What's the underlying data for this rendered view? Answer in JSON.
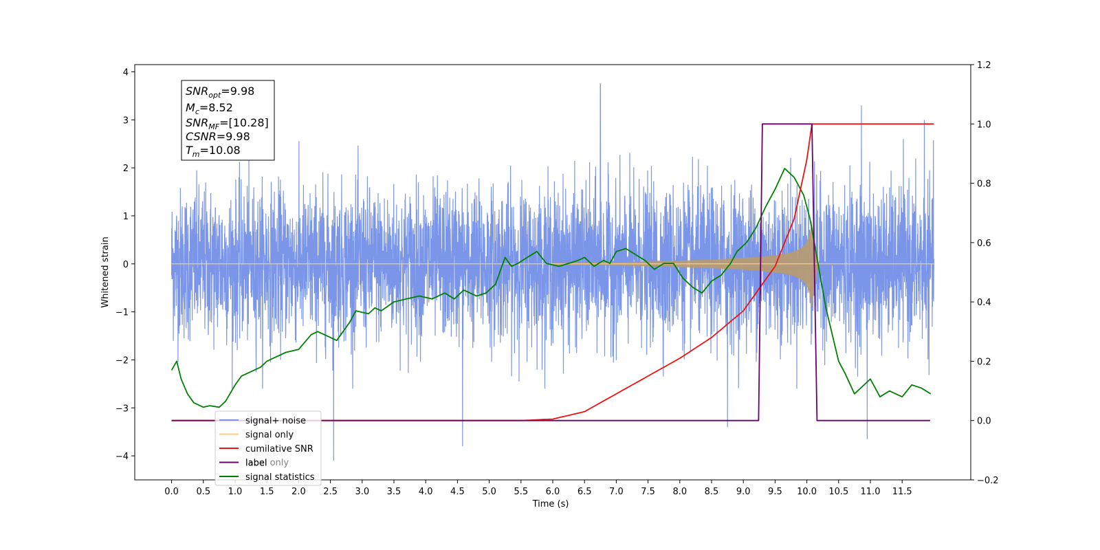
{
  "chart_data": {
    "type": "line",
    "xlabel": "Time (s)",
    "ylabel": "Whitened strain",
    "xlim": [
      -0.58,
      12.58
    ],
    "ylim": [
      -4.5,
      4.15
    ],
    "y2lim": [
      -0.2,
      1.2
    ],
    "x_ticks": [
      "0.0",
      "0.5",
      "1.0",
      "1.5",
      "2.0",
      "2.5",
      "3.0",
      "3.5",
      "4.0",
      "4.5",
      "5.0",
      "5.5",
      "6.0",
      "6.5",
      "7.0",
      "7.5",
      "8.0",
      "8.5",
      "9.0",
      "9.5",
      "10.0",
      "10.5",
      "11.0",
      "11.5"
    ],
    "y_ticks": [
      "4",
      "3",
      "2",
      "1",
      "0",
      "−1",
      "−2",
      "−3",
      "−4"
    ],
    "y2_ticks": [
      "1.2",
      "1.0",
      "0.8",
      "0.6",
      "0.4",
      "0.2",
      "0.0",
      "−0.2"
    ],
    "info_box": {
      "snr_opt": {
        "sym": "SNR",
        "sub": "opt",
        "val": "=9.98"
      },
      "mc": {
        "sym": "M",
        "sub": "c",
        "val": "=8.52"
      },
      "snr_mf": {
        "sym": "SNR",
        "sub": "MF",
        "val": "=[10.28]"
      },
      "csnr": {
        "sym": "CSNR",
        "val": "=9.98"
      },
      "tm": {
        "sym": "T",
        "sub": "m",
        "val": "=10.08"
      }
    },
    "legend": {
      "placement": "lower-left",
      "entries": [
        {
          "label": "signal+ noise",
          "color": "#7b96e8"
        },
        {
          "label": "signal only",
          "color": "#ffcc80"
        },
        {
          "label": "cumilative SNR",
          "color": "#ee1111"
        },
        {
          "label": "label",
          "color": "#6a006a"
        },
        {
          "label": "signal statistics",
          "color": "#008000"
        }
      ],
      "hidden_behind_legend": "label only"
    },
    "series": [
      {
        "name": "signal+ noise",
        "axis": "left",
        "description_values": "noise-dominated whitened strain, roughly ±2.5 with peaks near 3.7 and -4.1",
        "x_range": [
          0.0,
          12.0
        ],
        "spikes": [
          [
            6.75,
            3.75
          ],
          [
            2.55,
            -4.1
          ],
          [
            4.58,
            -3.8
          ],
          [
            10.86,
            3.3
          ],
          [
            10.95,
            -3.65
          ],
          [
            11.85,
            3.0
          ],
          [
            8.75,
            -3.4
          ]
        ]
      },
      {
        "name": "signal only",
        "axis": "left",
        "chirp_start": 6.0,
        "merger_time": 10.08,
        "peak_amplitude": 0.85
      },
      {
        "name": "cumilative SNR",
        "axis": "right",
        "x": [
          0.0,
          5.5,
          6.0,
          6.5,
          7.0,
          7.5,
          8.0,
          8.5,
          9.0,
          9.5,
          9.8,
          10.0,
          10.08,
          12.0
        ],
        "y": [
          0.0,
          0.0,
          0.005,
          0.03,
          0.09,
          0.15,
          0.21,
          0.28,
          0.37,
          0.52,
          0.68,
          0.88,
          1.0,
          1.0
        ]
      },
      {
        "name": "label",
        "axis": "right",
        "x": [
          0.0,
          9.24,
          9.3,
          10.08,
          10.16,
          11.94
        ],
        "y": [
          0.0,
          0.0,
          1.0,
          1.0,
          0.0,
          0.0
        ]
      },
      {
        "name": "signal statistics",
        "axis": "right",
        "x": [
          0.0,
          0.08,
          0.15,
          0.25,
          0.35,
          0.5,
          0.6,
          0.75,
          0.85,
          1.0,
          1.1,
          1.2,
          1.4,
          1.5,
          1.6,
          1.8,
          2.0,
          2.2,
          2.3,
          2.4,
          2.6,
          2.8,
          2.9,
          3.1,
          3.2,
          3.3,
          3.5,
          3.7,
          3.9,
          4.1,
          4.3,
          4.45,
          4.6,
          4.8,
          4.95,
          5.1,
          5.25,
          5.35,
          5.45,
          5.6,
          5.75,
          5.9,
          6.1,
          6.25,
          6.4,
          6.5,
          6.65,
          6.8,
          6.9,
          7.0,
          7.15,
          7.3,
          7.45,
          7.6,
          7.75,
          7.9,
          8.05,
          8.2,
          8.35,
          8.5,
          8.65,
          8.8,
          8.9,
          9.05,
          9.2,
          9.35,
          9.5,
          9.65,
          9.8,
          9.95,
          10.05,
          10.15,
          10.3,
          10.5,
          10.6,
          10.75,
          10.9,
          11.0,
          11.15,
          11.3,
          11.5,
          11.65,
          11.8,
          11.95
        ],
        "y": [
          0.17,
          0.2,
          0.14,
          0.09,
          0.06,
          0.045,
          0.05,
          0.045,
          0.065,
          0.12,
          0.15,
          0.16,
          0.18,
          0.2,
          0.21,
          0.23,
          0.24,
          0.29,
          0.3,
          0.29,
          0.27,
          0.33,
          0.37,
          0.36,
          0.38,
          0.37,
          0.4,
          0.41,
          0.42,
          0.41,
          0.43,
          0.41,
          0.44,
          0.42,
          0.43,
          0.46,
          0.55,
          0.52,
          0.53,
          0.55,
          0.57,
          0.53,
          0.52,
          0.53,
          0.54,
          0.55,
          0.52,
          0.54,
          0.53,
          0.57,
          0.58,
          0.56,
          0.54,
          0.51,
          0.53,
          0.53,
          0.48,
          0.45,
          0.43,
          0.47,
          0.49,
          0.53,
          0.57,
          0.6,
          0.65,
          0.72,
          0.78,
          0.85,
          0.82,
          0.76,
          0.68,
          0.56,
          0.38,
          0.2,
          0.16,
          0.09,
          0.12,
          0.14,
          0.08,
          0.1,
          0.08,
          0.12,
          0.11,
          0.09
        ]
      }
    ]
  }
}
